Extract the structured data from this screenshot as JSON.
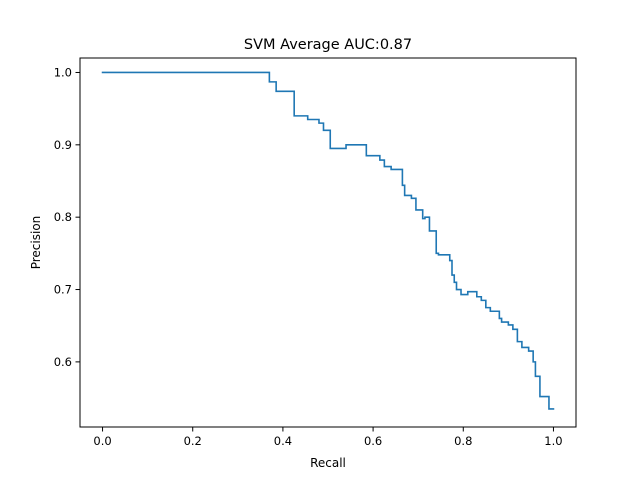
{
  "chart_data": {
    "type": "line",
    "title": "SVM Average AUC:0.87",
    "xlabel": "Recall",
    "ylabel": "Precision",
    "xlim": [
      -0.05,
      1.05
    ],
    "ylim": [
      0.51,
      1.02
    ],
    "grid": false,
    "legend": "none",
    "line_color": "#1f77b4",
    "drawstyle": "steps-post",
    "x_ticks": [
      {
        "value": 0.0,
        "label": "0.0"
      },
      {
        "value": 0.2,
        "label": "0.2"
      },
      {
        "value": 0.4,
        "label": "0.4"
      },
      {
        "value": 0.6,
        "label": "0.6"
      },
      {
        "value": 0.8,
        "label": "0.8"
      },
      {
        "value": 1.0,
        "label": "1.0"
      }
    ],
    "y_ticks": [
      {
        "value": 0.6,
        "label": "0.6"
      },
      {
        "value": 0.7,
        "label": "0.7"
      },
      {
        "value": 0.8,
        "label": "0.8"
      },
      {
        "value": 0.9,
        "label": "0.9"
      },
      {
        "value": 1.0,
        "label": "1.0"
      }
    ],
    "series": [
      {
        "x": [
          0.0,
          0.37,
          0.385,
          0.425,
          0.455,
          0.48,
          0.49,
          0.505,
          0.54,
          0.585,
          0.615,
          0.625,
          0.64,
          0.665,
          0.67,
          0.685,
          0.695,
          0.71,
          0.715,
          0.725,
          0.74,
          0.745,
          0.755,
          0.77,
          0.775,
          0.78,
          0.785,
          0.795,
          0.81,
          0.83,
          0.84,
          0.85,
          0.86,
          0.88,
          0.885,
          0.9,
          0.91,
          0.92,
          0.93,
          0.945,
          0.955,
          0.96,
          0.97,
          0.99,
          1.0
        ],
        "y": [
          1.0,
          0.987,
          0.974,
          0.94,
          0.935,
          0.93,
          0.92,
          0.895,
          0.9,
          0.885,
          0.879,
          0.87,
          0.866,
          0.844,
          0.83,
          0.826,
          0.81,
          0.798,
          0.8,
          0.781,
          0.75,
          0.748,
          0.748,
          0.74,
          0.72,
          0.71,
          0.7,
          0.693,
          0.697,
          0.69,
          0.685,
          0.675,
          0.67,
          0.66,
          0.655,
          0.651,
          0.645,
          0.628,
          0.62,
          0.615,
          0.6,
          0.58,
          0.552,
          0.535,
          0.535
        ]
      }
    ]
  }
}
